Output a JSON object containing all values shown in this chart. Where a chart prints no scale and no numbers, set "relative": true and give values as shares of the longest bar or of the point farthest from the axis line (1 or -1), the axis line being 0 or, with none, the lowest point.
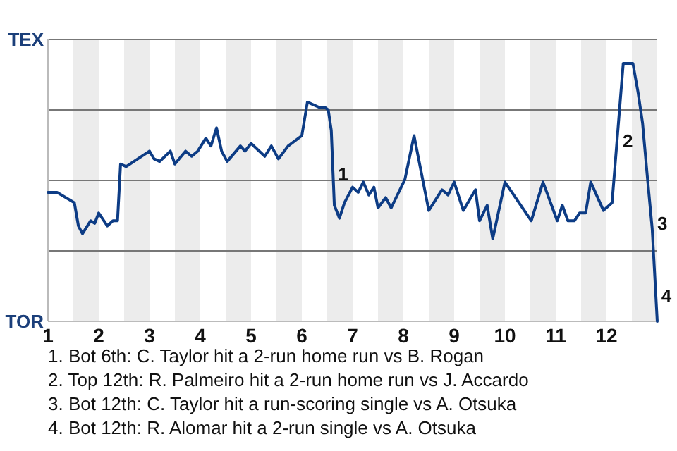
{
  "chart_data": {
    "type": "line",
    "relative": true,
    "xlim": [
      1,
      13
    ],
    "xticks": [
      1,
      2,
      3,
      4,
      5,
      6,
      7,
      8,
      9,
      10,
      11,
      12
    ],
    "grid": "y",
    "line_style": "solid",
    "marker": "none",
    "bands": [
      {
        "axis": "x",
        "from": 1.5,
        "to": 2,
        "color": "#ececec"
      },
      {
        "axis": "x",
        "from": 2.5,
        "to": 3,
        "color": "#ececec"
      },
      {
        "axis": "x",
        "from": 3.5,
        "to": 4,
        "color": "#ececec"
      },
      {
        "axis": "x",
        "from": 4.5,
        "to": 5,
        "color": "#ececec"
      },
      {
        "axis": "x",
        "from": 5.5,
        "to": 6,
        "color": "#ececec"
      },
      {
        "axis": "x",
        "from": 6.5,
        "to": 7,
        "color": "#ececec"
      },
      {
        "axis": "x",
        "from": 7.5,
        "to": 8,
        "color": "#ececec"
      },
      {
        "axis": "x",
        "from": 8.5,
        "to": 9,
        "color": "#ececec"
      },
      {
        "axis": "x",
        "from": 9.5,
        "to": 10,
        "color": "#ececec"
      },
      {
        "axis": "x",
        "from": 10.5,
        "to": 11,
        "color": "#ececec"
      },
      {
        "axis": "x",
        "from": 11.5,
        "to": 12,
        "color": "#ececec"
      },
      {
        "axis": "x",
        "from": 12.5,
        "to": 13,
        "color": "#ececec"
      }
    ],
    "series": [
      {
        "color": "#0d3c85",
        "x": [
          1,
          1.18,
          1.52,
          1.6,
          1.68,
          1.84,
          1.92,
          2,
          2.17,
          2.28,
          2.37,
          2.43,
          2.54,
          2.77,
          3,
          3.09,
          3.2,
          3.41,
          3.5,
          3.71,
          3.83,
          3.95,
          4.11,
          4.21,
          4.32,
          4.42,
          4.53,
          4.79,
          4.88,
          5,
          5.27,
          5.4,
          5.54,
          5.73,
          6,
          6.11,
          6.34,
          6.45,
          6.52,
          6.58,
          6.64,
          6.74,
          6.84,
          7,
          7.11,
          7.21,
          7.32,
          7.42,
          7.5,
          7.65,
          7.76,
          8.03,
          8.21,
          8.5,
          8.76,
          8.88,
          9,
          9.18,
          9.42,
          9.5,
          9.65,
          9.76,
          10,
          10.52,
          10.75,
          11.03,
          11.13,
          11.24,
          11.37,
          11.47,
          11.59,
          11.69,
          11.94,
          12.11,
          12.33,
          12.52,
          12.62,
          12.71,
          12.81,
          12.9,
          13
        ],
        "values": [
          0.5,
          0.5,
          0.46,
          0.37,
          0.34,
          0.39,
          0.38,
          0.42,
          0.37,
          0.39,
          0.39,
          0.61,
          0.6,
          0.63,
          0.66,
          0.63,
          0.62,
          0.66,
          0.61,
          0.66,
          0.64,
          0.66,
          0.71,
          0.68,
          0.75,
          0.66,
          0.62,
          0.68,
          0.66,
          0.69,
          0.64,
          0.68,
          0.63,
          0.68,
          0.72,
          0.85,
          0.83,
          0.83,
          0.82,
          0.74,
          0.45,
          0.4,
          0.46,
          0.52,
          0.5,
          0.54,
          0.49,
          0.52,
          0.44,
          0.48,
          0.44,
          0.55,
          0.72,
          0.43,
          0.51,
          0.49,
          0.54,
          0.43,
          0.51,
          0.39,
          0.45,
          0.32,
          0.54,
          0.39,
          0.54,
          0.39,
          0.45,
          0.39,
          0.39,
          0.42,
          0.42,
          0.54,
          0.43,
          0.46,
          1,
          1,
          0.89,
          0.77,
          0.55,
          0.36,
          0
        ]
      }
    ],
    "annotations": [
      "TEX",
      "TOR",
      {
        "text": "1",
        "x": 6.6,
        "y": 0.57
      },
      {
        "text": "2",
        "x": 12.21,
        "y": 0.7
      },
      {
        "text": "3",
        "x": 12.89,
        "y": 0.38
      },
      {
        "text": "4",
        "x": 12.97,
        "y": 0.1
      },
      "1. Bot 6th: C. Taylor hit a 2-run home run vs B. Rogan",
      "2. Top 12th: R. Palmeiro hit a 2-run home run vs J. Accardo",
      "3. Bot 12th: C. Taylor hit a run-scoring single vs A. Otsuka",
      "4. Bot 12th: R. Alomar hit a 2-run single vs A. Otsuka"
    ]
  }
}
